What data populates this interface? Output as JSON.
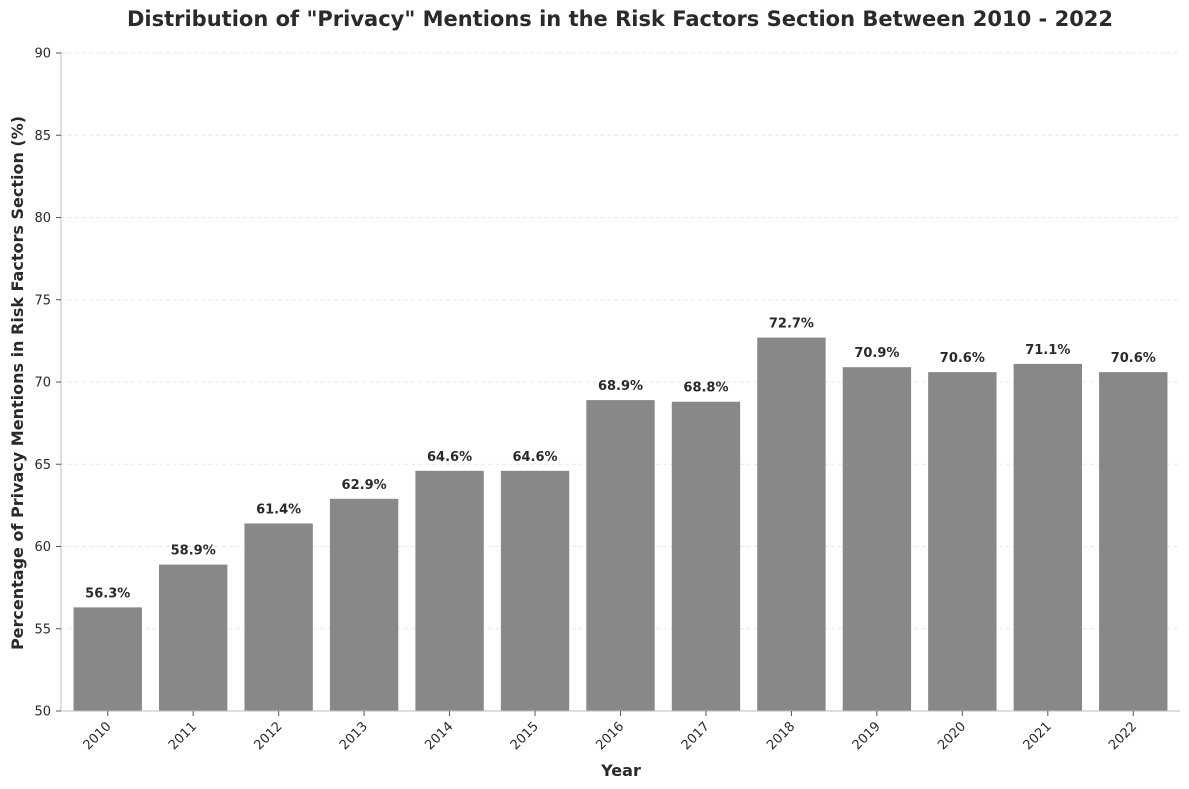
{
  "chart_data": {
    "type": "bar",
    "title": "Distribution of \"Privacy\" Mentions in the Risk Factors Section Between 2010 - 2022",
    "xlabel": "Year",
    "ylabel": "Percentage of Privacy Mentions in Risk Factors Section (%)",
    "categories": [
      "2010",
      "2011",
      "2012",
      "2013",
      "2014",
      "2015",
      "2016",
      "2017",
      "2018",
      "2019",
      "2020",
      "2021",
      "2022"
    ],
    "values": [
      56.3,
      58.9,
      61.4,
      62.9,
      64.6,
      64.6,
      68.9,
      68.8,
      72.7,
      70.9,
      70.6,
      71.1,
      70.6
    ],
    "data_labels": [
      "56.3%",
      "58.9%",
      "61.4%",
      "62.9%",
      "64.6%",
      "64.6%",
      "68.9%",
      "68.8%",
      "72.7%",
      "70.9%",
      "70.6%",
      "71.1%",
      "70.6%"
    ],
    "ylim": [
      50,
      90
    ],
    "yticks": [
      50,
      55,
      60,
      65,
      70,
      75,
      80,
      85,
      90
    ],
    "grid": true,
    "bar_color": "#888888"
  }
}
